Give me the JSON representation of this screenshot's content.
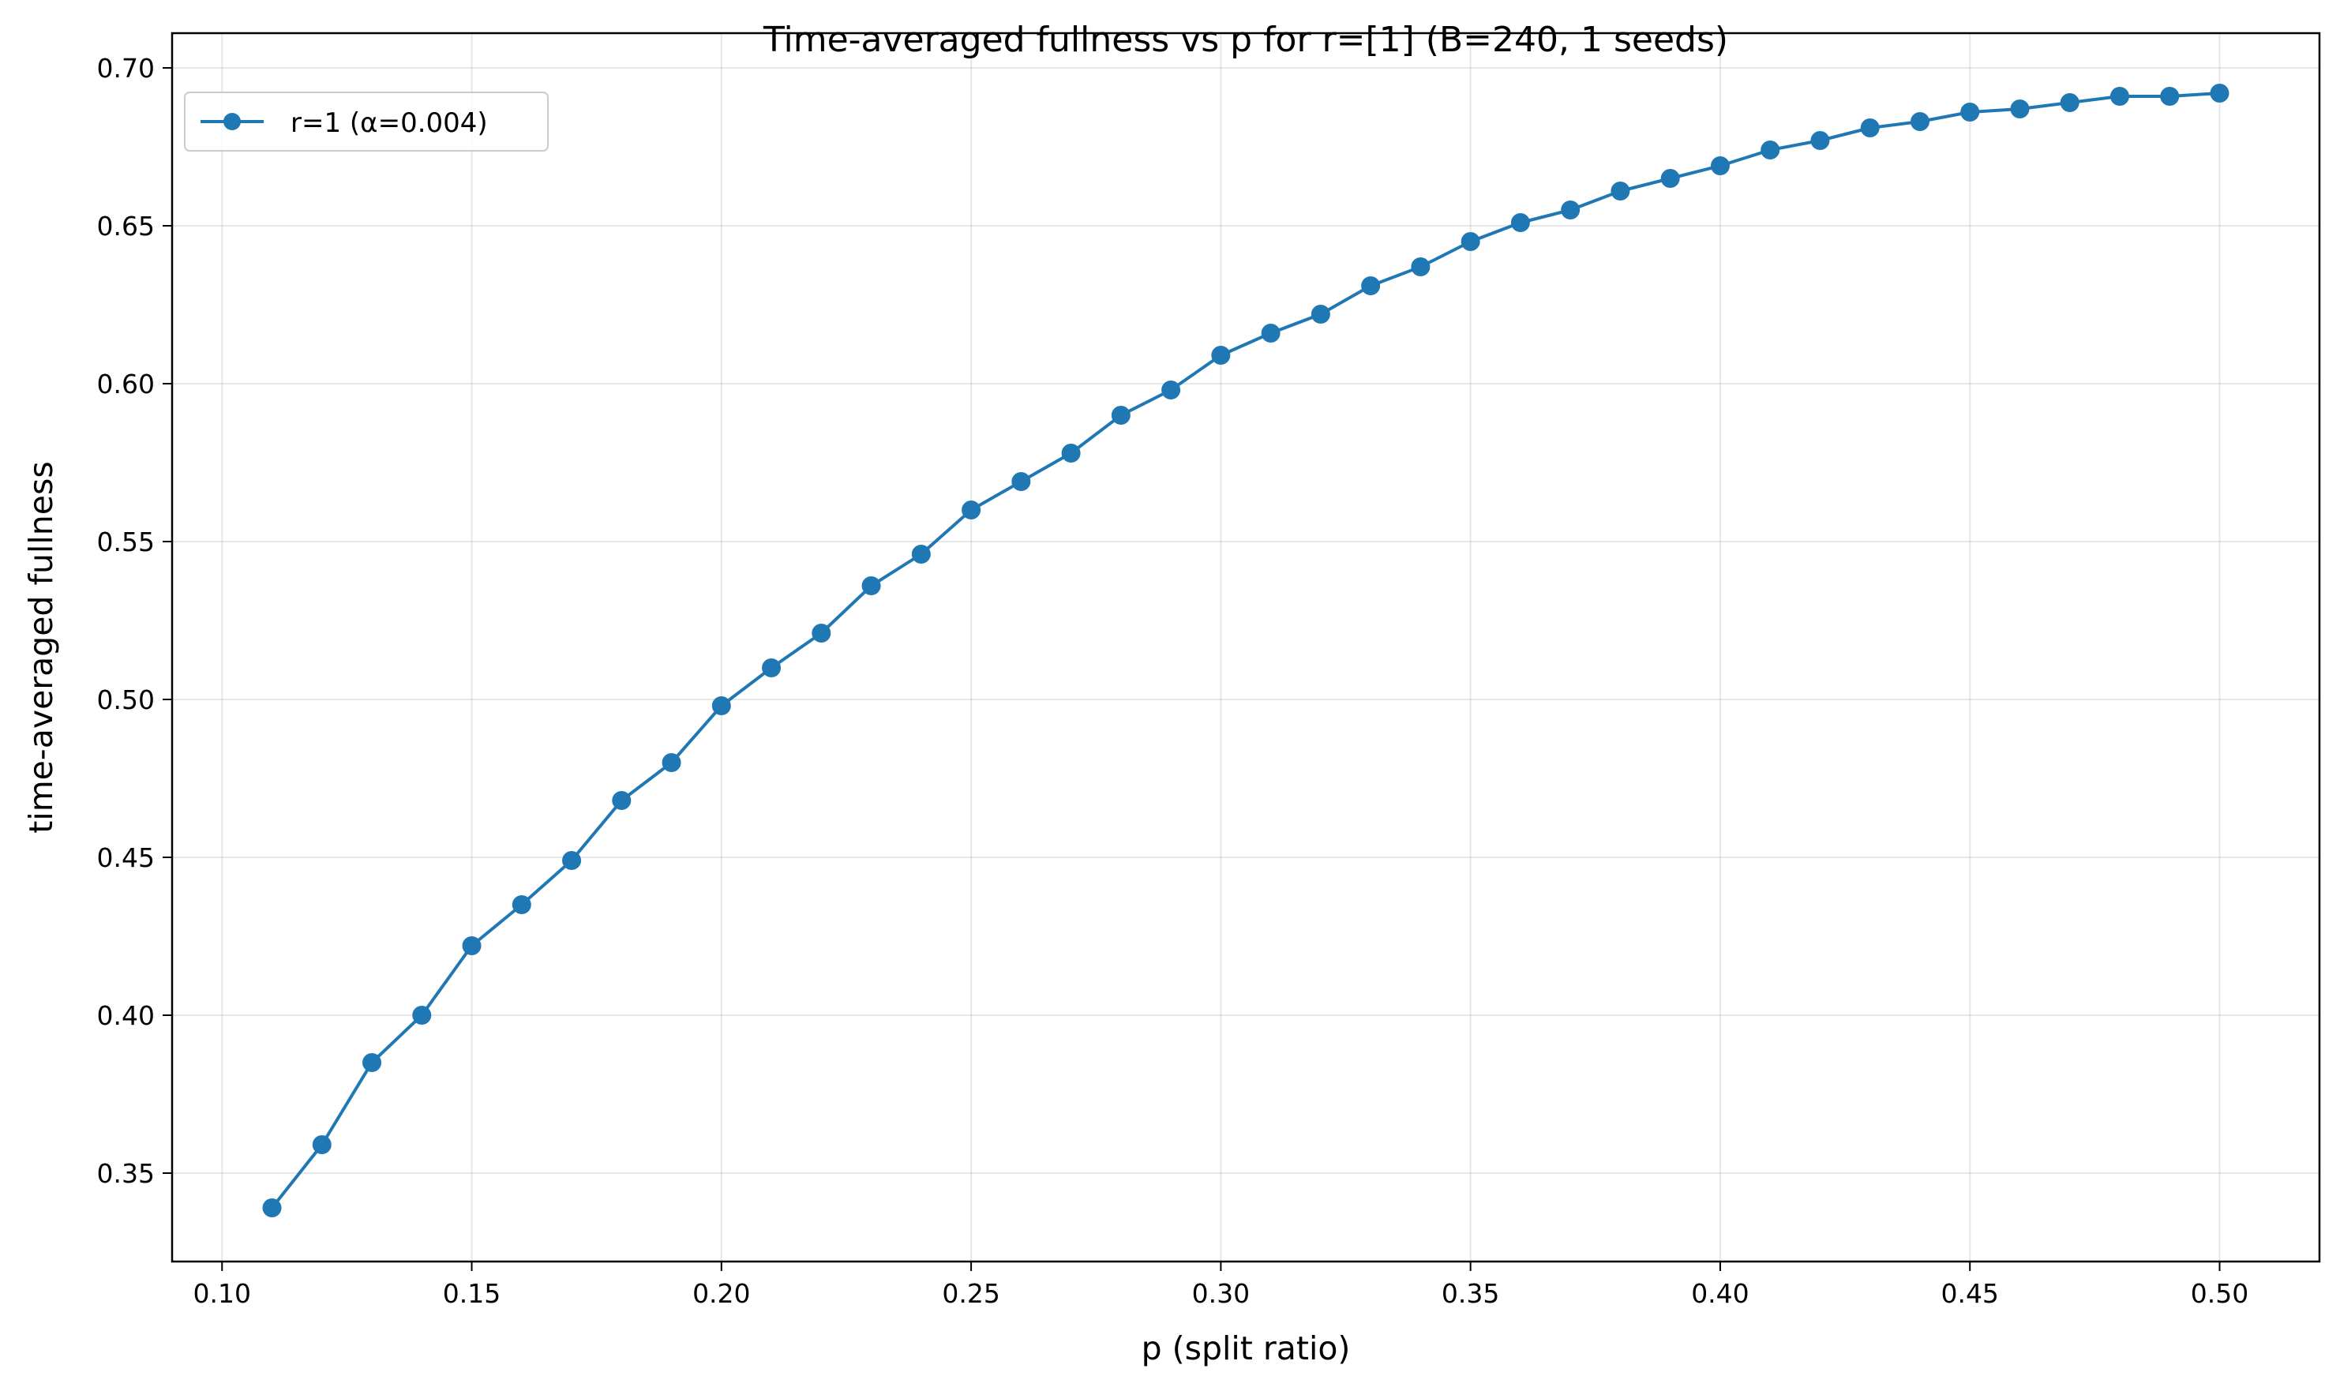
{
  "chart_data": {
    "type": "line",
    "title": "Time-averaged fullness vs p for r=[1] (B=240, 1 seeds)",
    "xlabel": "p (split ratio)",
    "ylabel": "time-averaged fullness",
    "xlim": [
      0.09,
      0.52
    ],
    "ylim": [
      0.322,
      0.711
    ],
    "xticks": [
      "0.10",
      "0.15",
      "0.20",
      "0.25",
      "0.30",
      "0.35",
      "0.40",
      "0.45",
      "0.50"
    ],
    "yticks": [
      "0.35",
      "0.40",
      "0.45",
      "0.50",
      "0.55",
      "0.60",
      "0.65",
      "0.70"
    ],
    "grid": true,
    "legend_position": "top-left",
    "series": [
      {
        "name": "r=1 (α=0.004)",
        "color": "#1f77b4",
        "marker": "circle",
        "x": [
          0.11,
          0.12,
          0.13,
          0.14,
          0.15,
          0.16,
          0.17,
          0.18,
          0.19,
          0.2,
          0.21,
          0.22,
          0.23,
          0.24,
          0.25,
          0.26,
          0.27,
          0.28,
          0.29,
          0.3,
          0.31,
          0.32,
          0.33,
          0.34,
          0.35,
          0.36,
          0.37,
          0.38,
          0.39,
          0.4,
          0.41,
          0.42,
          0.43,
          0.44,
          0.45,
          0.46,
          0.47,
          0.48,
          0.49,
          0.5
        ],
        "y": [
          0.339,
          0.359,
          0.385,
          0.4,
          0.422,
          0.435,
          0.449,
          0.468,
          0.48,
          0.498,
          0.51,
          0.521,
          0.536,
          0.546,
          0.56,
          0.569,
          0.578,
          0.59,
          0.598,
          0.609,
          0.616,
          0.622,
          0.631,
          0.637,
          0.645,
          0.651,
          0.655,
          0.661,
          0.665,
          0.669,
          0.674,
          0.677,
          0.681,
          0.683,
          0.686,
          0.687,
          0.689,
          0.691,
          0.691,
          0.692
        ]
      }
    ]
  }
}
